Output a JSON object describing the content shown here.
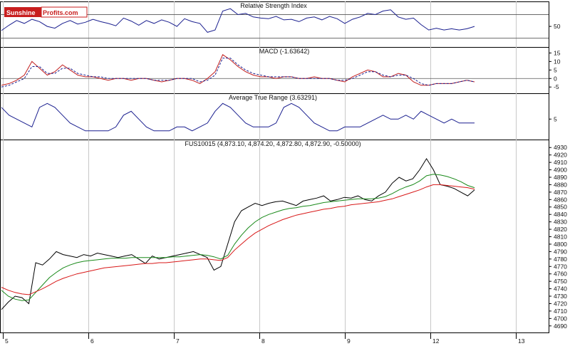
{
  "logo": {
    "part1": "Sunshine",
    "part2": "Profits.com"
  },
  "chart_data": {
    "type": "line",
    "x_axis": {
      "labels": [
        "5",
        "6",
        "7",
        "8",
        "9",
        "12",
        "13"
      ]
    },
    "panels": [
      {
        "title": "Relative Strength Index",
        "yticks": [
          50
        ],
        "levels": [
          30,
          70
        ],
        "ylim": [
          20,
          85
        ],
        "series": [
          {
            "color": "#1a1f8f",
            "values": [
              43,
              52,
              60,
              55,
              62,
              58,
              50,
              47,
              55,
              60,
              54,
              57,
              62,
              58,
              55,
              51,
              64,
              59,
              52,
              60,
              55,
              61,
              57,
              50,
              63,
              58,
              55,
              40,
              44,
              76,
              80,
              70,
              72,
              66,
              64,
              63,
              67,
              61,
              62,
              58,
              64,
              66,
              61,
              67,
              63,
              55,
              62,
              66,
              72,
              70,
              76,
              78,
              66,
              62,
              64,
              53,
              44,
              47,
              44,
              46,
              44,
              46,
              50
            ]
          }
        ]
      },
      {
        "title": "MACD (-1.63642)",
        "yticks": [
          15,
          10,
          5,
          0,
          -5
        ],
        "ylim": [
          -7,
          16
        ],
        "zero_line": 0,
        "series": [
          {
            "color": "#c21e1e",
            "values": [
              -4,
              -3,
              -1,
              2,
              10,
              6,
              2,
              4,
              8,
              5,
              2,
              1,
              1,
              0,
              -1,
              0,
              0,
              -1,
              0,
              0,
              -1,
              -2,
              -1,
              0,
              0,
              -1,
              -3,
              0,
              4,
              14,
              11,
              7,
              4,
              2,
              1,
              1,
              0,
              1,
              1,
              0,
              0,
              1,
              0,
              0,
              -1,
              -2,
              1,
              3,
              5,
              4,
              1,
              1,
              3,
              2,
              -2,
              -4,
              -4,
              -3,
              -3,
              -3,
              -2,
              -1,
              -2
            ]
          },
          {
            "color": "#1a1f8f",
            "dashed": true,
            "values": [
              -5,
              -4,
              -2,
              0,
              7,
              7,
              3,
              3,
              6,
              6,
              3,
              2,
              1,
              1,
              0,
              0,
              0,
              0,
              0,
              0,
              -1,
              -1,
              -1,
              0,
              0,
              0,
              -2,
              -1,
              2,
              12,
              12,
              8,
              5,
              3,
              2,
              1,
              1,
              1,
              1,
              0,
              0,
              0,
              0,
              0,
              -1,
              -1,
              0,
              2,
              4,
              4,
              2,
              1,
              2,
              2,
              0,
              -3,
              -4,
              -3,
              -3,
              -3,
              -2,
              -1,
              -2
            ]
          }
        ]
      },
      {
        "title": "Average True Range (3.63291)",
        "yticks": [
          5
        ],
        "ylim": [
          0.5,
          10.5
        ],
        "series": [
          {
            "color": "#1a1f8f",
            "values": [
              8,
              6,
              5,
              4,
              3,
              8,
              9,
              8,
              6,
              4,
              3,
              2,
              2,
              2,
              2,
              3,
              6,
              7,
              5,
              3,
              2,
              2,
              2,
              3,
              3,
              2,
              3,
              4,
              7,
              9,
              8,
              6,
              4,
              3,
              3,
              3,
              4,
              8,
              9,
              8,
              6,
              4,
              3,
              2,
              2,
              3,
              3,
              3,
              4,
              5,
              6,
              5,
              5,
              6,
              5,
              7,
              6,
              5,
              4,
              5,
              4,
              4,
              4
            ]
          }
        ]
      },
      {
        "title": "FUS10015 (4,873.10, 4,874.20, 4,872.80, 4,872.90, -0.50000)",
        "yticks": [
          4930,
          4920,
          4910,
          4900,
          4890,
          4880,
          4870,
          4860,
          4850,
          4840,
          4830,
          4820,
          4810,
          4800,
          4790,
          4780,
          4770,
          4760,
          4750,
          4740,
          4730,
          4720,
          4710,
          4700,
          4690
        ],
        "ylim": [
          4685,
          4935
        ],
        "series": [
          {
            "color": "#000000",
            "values": [
              4712,
              4722,
              4730,
              4728,
              4720,
              4775,
              4772,
              4780,
              4790,
              4786,
              4784,
              4782,
              4786,
              4784,
              4788,
              4786,
              4784,
              4782,
              4784,
              4786,
              4780,
              4774,
              4784,
              4780,
              4782,
              4784,
              4786,
              4788,
              4790,
              4786,
              4782,
              4765,
              4770,
              4800,
              4830,
              4845,
              4850,
              4855,
              4852,
              4855,
              4857,
              4858,
              4855,
              4852,
              4858,
              4860,
              4862,
              4865,
              4858,
              4860,
              4863,
              4862,
              4865,
              4860,
              4858,
              4865,
              4870,
              4882,
              4890,
              4885,
              4888,
              4900,
              4915,
              4900,
              4880,
              4878,
              4875,
              4870,
              4865,
              4873
            ]
          },
          {
            "color": "#1a8a1a",
            "values": [
              4738,
              4730,
              4726,
              4724,
              4725,
              4735,
              4745,
              4755,
              4762,
              4768,
              4772,
              4775,
              4777,
              4778,
              4779,
              4780,
              4781,
              4781,
              4781,
              4782,
              4782,
              4782,
              4782,
              4782,
              4782,
              4783,
              4783,
              4784,
              4785,
              4786,
              4785,
              4783,
              4780,
              4785,
              4800,
              4812,
              4822,
              4830,
              4836,
              4840,
              4843,
              4846,
              4848,
              4849,
              4851,
              4852,
              4854,
              4856,
              4857,
              4858,
              4859,
              4860,
              4861,
              4861,
              4861,
              4862,
              4864,
              4868,
              4873,
              4877,
              4880,
              4885,
              4892,
              4894,
              4893,
              4891,
              4888,
              4884,
              4879,
              4876
            ]
          },
          {
            "color": "#d81818",
            "values": [
              4742,
              4738,
              4735,
              4733,
              4732,
              4736,
              4740,
              4745,
              4750,
              4754,
              4757,
              4760,
              4762,
              4764,
              4766,
              4768,
              4769,
              4770,
              4771,
              4772,
              4773,
              4774,
              4774,
              4775,
              4775,
              4776,
              4777,
              4778,
              4779,
              4780,
              4780,
              4779,
              4778,
              4782,
              4792,
              4800,
              4808,
              4815,
              4820,
              4825,
              4829,
              4833,
              4836,
              4839,
              4841,
              4843,
              4845,
              4847,
              4848,
              4850,
              4851,
              4853,
              4854,
              4855,
              4856,
              4857,
              4859,
              4861,
              4864,
              4867,
              4870,
              4873,
              4877,
              4880,
              4880,
              4879,
              4878,
              4877,
              4876,
              4874
            ]
          }
        ]
      }
    ]
  }
}
